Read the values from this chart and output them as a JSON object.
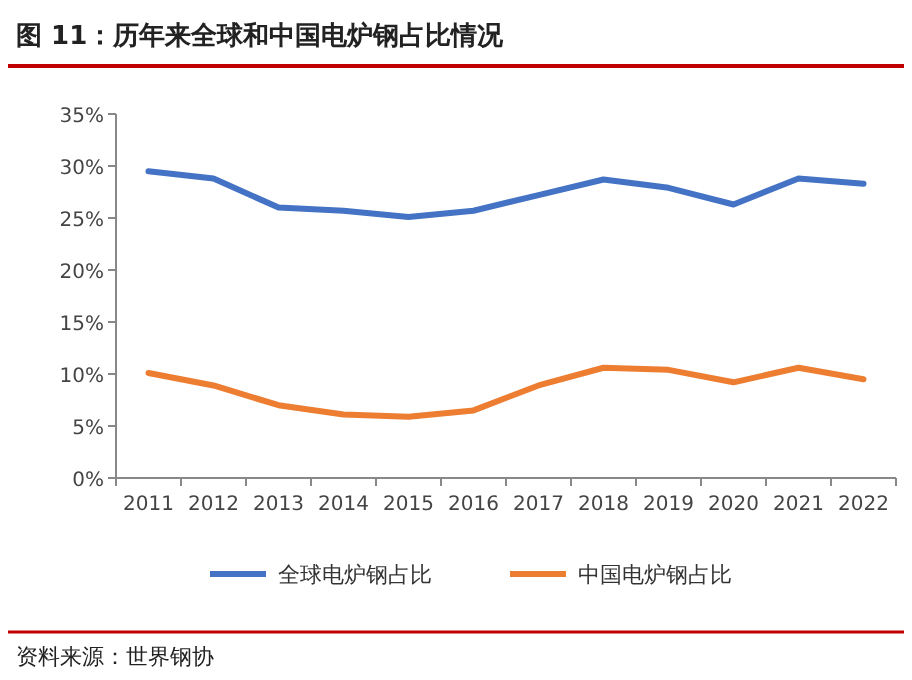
{
  "chart_data": {
    "type": "line",
    "title": "图 11：历年来全球和中国电炉钢占比情况",
    "categories": [
      "2011",
      "2012",
      "2013",
      "2014",
      "2015",
      "2016",
      "2017",
      "2018",
      "2019",
      "2020",
      "2021",
      "2022"
    ],
    "series": [
      {
        "name": "全球电炉钢占比",
        "color": "#4472c4",
        "values": [
          29.5,
          28.8,
          26.0,
          25.7,
          25.1,
          25.7,
          27.2,
          28.7,
          27.9,
          26.3,
          28.8,
          28.3
        ]
      },
      {
        "name": "中国电炉钢占比",
        "color": "#ed7d31",
        "values": [
          10.1,
          8.9,
          7.0,
          6.1,
          5.9,
          6.5,
          8.9,
          10.6,
          10.4,
          9.2,
          10.6,
          9.5
        ]
      }
    ],
    "ylim": [
      0,
      35
    ],
    "yticks": [
      {
        "value": 0,
        "label": "0%"
      },
      {
        "value": 5,
        "label": "5%"
      },
      {
        "value": 10,
        "label": "10%"
      },
      {
        "value": 15,
        "label": "15%"
      },
      {
        "value": 20,
        "label": "20%"
      },
      {
        "value": 25,
        "label": "25%"
      },
      {
        "value": 30,
        "label": "30%"
      },
      {
        "value": 35,
        "label": "35%"
      }
    ],
    "grid": false,
    "legend": "bottom",
    "marker": "none",
    "line_style": "solid",
    "annotations": [
      "资料来源：世界钢协"
    ]
  }
}
